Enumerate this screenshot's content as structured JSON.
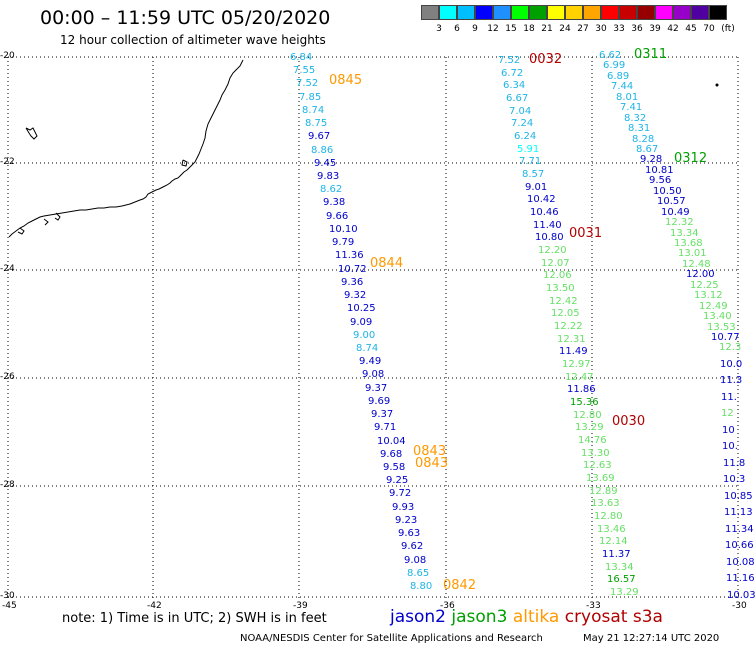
{
  "header": {
    "title": "00:00 – 11:59 UTC 05/20/2020",
    "subtitle": "12 hour collection of altimeter wave heights"
  },
  "colorbar": {
    "unit": "(ft)",
    "colors": [
      "#808080",
      "#00ffff",
      "#00bfff",
      "#0000ff",
      "#1e90ff",
      "#00ff00",
      "#00a000",
      "#ffff00",
      "#ffd200",
      "#ffa500",
      "#ff0000",
      "#c80000",
      "#960000",
      "#ff00ff",
      "#9600c8",
      "#5000a0",
      "#000000"
    ],
    "labels": [
      "3",
      "6",
      "9",
      "12",
      "15",
      "18",
      "21",
      "24",
      "27",
      "30",
      "33",
      "36",
      "39",
      "42",
      "45",
      "70"
    ]
  },
  "axes": {
    "lon_ticks": [
      "-45",
      "-42",
      "-39",
      "-36",
      "-33",
      "-30"
    ],
    "lat_ticks": [
      "-20",
      "-22",
      "-24",
      "-26",
      "-28",
      "-30"
    ]
  },
  "legend": {
    "jason2": {
      "text": "jason2",
      "color": "#0000cc"
    },
    "jason3": {
      "text": "jason3",
      "color": "#00a000"
    },
    "altika": {
      "text": "altika",
      "color": "#ff9900"
    },
    "cryosat": {
      "text": "cryosat",
      "color": "#b00000"
    },
    "s3a": {
      "text": "s3a",
      "color": "#b00000"
    }
  },
  "note": "note: 1) Time is in UTC; 2) SWH is in feet",
  "footer": {
    "credit": "NOAA/NESDIS Center for Satellite Applications and Research",
    "stamp": "May 21 12:27:14 UTC 2020"
  },
  "tracks": [
    {
      "id": "track1",
      "values": [
        {
          "v": "6.84",
          "c": "#1eb4e6"
        },
        {
          "v": "7.55",
          "c": "#1eb4e6"
        },
        {
          "v": "7.52",
          "c": "#1eb4e6"
        },
        {
          "v": "7.85",
          "c": "#1eb4e6"
        },
        {
          "v": "8.74",
          "c": "#1eb4e6"
        },
        {
          "v": "8.75",
          "c": "#1eb4e6"
        },
        {
          "v": "9.67",
          "c": "#0000cc"
        },
        {
          "v": "8.86",
          "c": "#1eb4e6"
        },
        {
          "v": "9.45",
          "c": "#0000cc"
        },
        {
          "v": "9.83",
          "c": "#0000cc"
        },
        {
          "v": "8.62",
          "c": "#1eb4e6"
        },
        {
          "v": "9.38",
          "c": "#0000cc"
        },
        {
          "v": "9.66",
          "c": "#0000cc"
        },
        {
          "v": "10.10",
          "c": "#0000cc"
        },
        {
          "v": "9.79",
          "c": "#0000cc"
        },
        {
          "v": "11.36",
          "c": "#0000cc"
        },
        {
          "v": "10.72",
          "c": "#0000cc"
        },
        {
          "v": "9.36",
          "c": "#0000cc"
        },
        {
          "v": "9.32",
          "c": "#0000cc"
        },
        {
          "v": "10.25",
          "c": "#0000cc"
        },
        {
          "v": "9.09",
          "c": "#0000cc"
        },
        {
          "v": "9.00",
          "c": "#1eb4e6"
        },
        {
          "v": "8.74",
          "c": "#1eb4e6"
        },
        {
          "v": "9.49",
          "c": "#0000cc"
        },
        {
          "v": "9.08",
          "c": "#0000cc"
        },
        {
          "v": "9.37",
          "c": "#0000cc"
        },
        {
          "v": "9.69",
          "c": "#0000cc"
        },
        {
          "v": "9.37",
          "c": "#0000cc"
        },
        {
          "v": "9.71",
          "c": "#0000cc"
        },
        {
          "v": "10.04",
          "c": "#0000cc"
        },
        {
          "v": "9.68",
          "c": "#0000cc"
        },
        {
          "v": "9.58",
          "c": "#0000cc"
        },
        {
          "v": "9.25",
          "c": "#0000cc"
        },
        {
          "v": "9.72",
          "c": "#0000cc"
        },
        {
          "v": "9.93",
          "c": "#0000cc"
        },
        {
          "v": "9.23",
          "c": "#0000cc"
        },
        {
          "v": "9.63",
          "c": "#0000cc"
        },
        {
          "v": "9.62",
          "c": "#0000cc"
        },
        {
          "v": "9.08",
          "c": "#0000cc"
        },
        {
          "v": "8.65",
          "c": "#1eb4e6"
        },
        {
          "v": "8.80",
          "c": "#1eb4e6"
        }
      ]
    },
    {
      "id": "track2",
      "values": [
        {
          "v": "7.52",
          "c": "#1eb4e6"
        },
        {
          "v": "6.72",
          "c": "#1eb4e6"
        },
        {
          "v": "6.34",
          "c": "#1eb4e6"
        },
        {
          "v": "6.67",
          "c": "#1eb4e6"
        },
        {
          "v": "7.04",
          "c": "#1eb4e6"
        },
        {
          "v": "7.24",
          "c": "#1eb4e6"
        },
        {
          "v": "6.24",
          "c": "#1eb4e6"
        },
        {
          "v": "5.91",
          "c": "#00ffff"
        },
        {
          "v": "7.71",
          "c": "#1eb4e6"
        },
        {
          "v": "8.57",
          "c": "#1eb4e6"
        },
        {
          "v": "9.01",
          "c": "#0000cc"
        },
        {
          "v": "10.42",
          "c": "#0000cc"
        },
        {
          "v": "10.46",
          "c": "#0000cc"
        },
        {
          "v": "11.40",
          "c": "#0000cc"
        },
        {
          "v": "10.80",
          "c": "#0000cc"
        },
        {
          "v": "12.20",
          "c": "#66e066"
        },
        {
          "v": "12.07",
          "c": "#66e066"
        },
        {
          "v": "12.06",
          "c": "#66e066"
        },
        {
          "v": "13.50",
          "c": "#66e066"
        },
        {
          "v": "12.42",
          "c": "#66e066"
        },
        {
          "v": "12.05",
          "c": "#66e066"
        },
        {
          "v": "12.22",
          "c": "#66e066"
        },
        {
          "v": "12.31",
          "c": "#66e066"
        },
        {
          "v": "11.49",
          "c": "#0000cc"
        },
        {
          "v": "12.97",
          "c": "#66e066"
        },
        {
          "v": "12.47",
          "c": "#66e066"
        },
        {
          "v": "11.86",
          "c": "#0000cc"
        },
        {
          "v": "15.36",
          "c": "#00a000"
        },
        {
          "v": "12.80",
          "c": "#66e066"
        },
        {
          "v": "13.29",
          "c": "#66e066"
        },
        {
          "v": "14.76",
          "c": "#66e066"
        },
        {
          "v": "13.30",
          "c": "#66e066"
        },
        {
          "v": "12.63",
          "c": "#66e066"
        },
        {
          "v": "13.69",
          "c": "#66e066"
        },
        {
          "v": "12.89",
          "c": "#66e066"
        },
        {
          "v": "13.63",
          "c": "#66e066"
        },
        {
          "v": "12.80",
          "c": "#66e066"
        },
        {
          "v": "13.46",
          "c": "#66e066"
        },
        {
          "v": "12.14",
          "c": "#66e066"
        },
        {
          "v": "11.37",
          "c": "#0000cc"
        },
        {
          "v": "13.34",
          "c": "#66e066"
        },
        {
          "v": "16.57",
          "c": "#00a000"
        },
        {
          "v": "13.29",
          "c": "#66e066"
        }
      ]
    },
    {
      "id": "track3",
      "values": [
        {
          "v": "6.62",
          "c": "#1eb4e6"
        },
        {
          "v": "6.99",
          "c": "#1eb4e6"
        },
        {
          "v": "6.89",
          "c": "#1eb4e6"
        },
        {
          "v": "7.44",
          "c": "#1eb4e6"
        },
        {
          "v": "8.01",
          "c": "#1eb4e6"
        },
        {
          "v": "7.41",
          "c": "#1eb4e6"
        },
        {
          "v": "8.32",
          "c": "#1eb4e6"
        },
        {
          "v": "8.31",
          "c": "#1eb4e6"
        },
        {
          "v": "8.28",
          "c": "#1eb4e6"
        },
        {
          "v": "8.67",
          "c": "#1eb4e6"
        },
        {
          "v": "9.28",
          "c": "#0000cc"
        },
        {
          "v": "10.81",
          "c": "#0000cc"
        },
        {
          "v": "9.56",
          "c": "#0000cc"
        },
        {
          "v": "10.50",
          "c": "#0000cc"
        },
        {
          "v": "10.57",
          "c": "#0000cc"
        },
        {
          "v": "10.49",
          "c": "#0000cc"
        },
        {
          "v": "12.32",
          "c": "#66e066"
        },
        {
          "v": "13.34",
          "c": "#66e066"
        },
        {
          "v": "13.68",
          "c": "#66e066"
        },
        {
          "v": "13.01",
          "c": "#66e066"
        },
        {
          "v": "12.48",
          "c": "#66e066"
        },
        {
          "v": "12.00",
          "c": "#0000cc"
        },
        {
          "v": "12.25",
          "c": "#66e066"
        },
        {
          "v": "13.12",
          "c": "#66e066"
        },
        {
          "v": "12.49",
          "c": "#66e066"
        },
        {
          "v": "13.40",
          "c": "#66e066"
        },
        {
          "v": "13.53",
          "c": "#66e066"
        },
        {
          "v": "10.77",
          "c": "#0000cc"
        }
      ]
    },
    {
      "id": "track4",
      "values": [
        {
          "v": "12.3",
          "c": "#66e066"
        },
        {
          "v": "10.0",
          "c": "#0000cc"
        },
        {
          "v": "11.3",
          "c": "#0000cc"
        },
        {
          "v": "11.",
          "c": "#0000cc"
        },
        {
          "v": "12",
          "c": "#66e066"
        },
        {
          "v": "10",
          "c": "#0000cc"
        },
        {
          "v": "10.",
          "c": "#0000cc"
        },
        {
          "v": "11.8",
          "c": "#0000cc"
        },
        {
          "v": "10.3",
          "c": "#0000cc"
        },
        {
          "v": "10.85",
          "c": "#0000cc"
        },
        {
          "v": "11.13",
          "c": "#0000cc"
        },
        {
          "v": "11.34",
          "c": "#0000cc"
        },
        {
          "v": "10.66",
          "c": "#0000cc"
        },
        {
          "v": "10.08",
          "c": "#0000cc"
        },
        {
          "v": "11.16",
          "c": "#0000cc"
        },
        {
          "v": "10.03",
          "c": "#0000cc"
        }
      ]
    }
  ],
  "time_labels": [
    {
      "text": "0845",
      "color": "#ff9900"
    },
    {
      "text": "0032",
      "color": "#b00000"
    },
    {
      "text": "0311",
      "color": "#00a000"
    },
    {
      "text": "0312",
      "color": "#00a000"
    },
    {
      "text": "0031",
      "color": "#b00000"
    },
    {
      "text": "0844",
      "color": "#ff9900"
    },
    {
      "text": "0030",
      "color": "#b00000"
    },
    {
      "text": "0843",
      "color": "#ff9900"
    },
    {
      "text": "0843",
      "color": "#ff9900"
    },
    {
      "text": "0842",
      "color": "#ff9900"
    }
  ]
}
